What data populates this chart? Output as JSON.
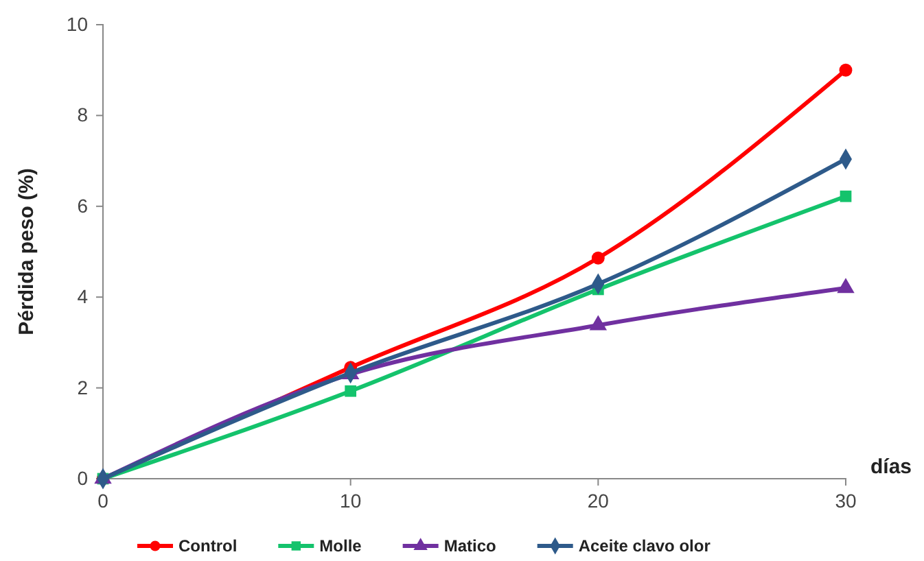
{
  "chart_data": {
    "type": "line",
    "xlabel": "días",
    "ylabel": "Pérdida peso (%)",
    "x": [
      0,
      10,
      20,
      30
    ],
    "xlim": [
      0,
      30
    ],
    "xticks": [
      0,
      10,
      20,
      30
    ],
    "ylim": [
      0,
      10
    ],
    "yticks": [
      0,
      2,
      4,
      6,
      8,
      10
    ],
    "grid": false,
    "legend": "bottom",
    "line_style": "solid",
    "series": [
      {
        "name": "Control",
        "color": "#ff0000",
        "marker": "circle",
        "values": [
          0,
          2.45,
          4.86,
          9.0
        ]
      },
      {
        "name": "Molle",
        "color": "#14c36c",
        "marker": "square",
        "values": [
          0,
          1.93,
          4.17,
          6.22
        ]
      },
      {
        "name": "Matico",
        "color": "#7030a0",
        "marker": "triangle",
        "values": [
          0,
          2.3,
          3.38,
          4.2
        ]
      },
      {
        "name": "Aceite clavo olor",
        "color": "#2e5a8a",
        "marker": "diamond",
        "values": [
          0,
          2.33,
          4.29,
          7.04
        ]
      }
    ]
  }
}
